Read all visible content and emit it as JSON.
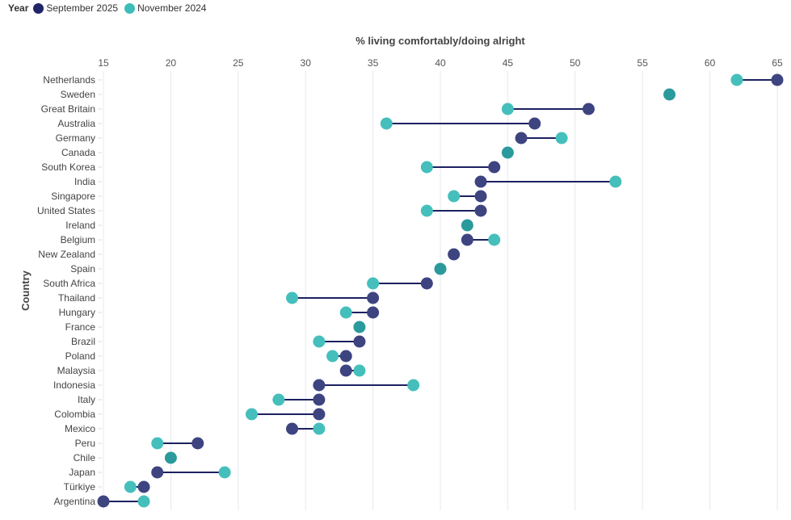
{
  "legend": {
    "title": "Year",
    "items": [
      {
        "label": "September 2025",
        "color": "#232a6b"
      },
      {
        "label": "November 2024",
        "color": "#3cbdb9"
      }
    ]
  },
  "chart_data": {
    "type": "dumbbell",
    "title": "",
    "xlabel": "% living comfortably/doing alright",
    "ylabel": "Country",
    "xlim": [
      15,
      65
    ],
    "xticks": [
      15,
      20,
      25,
      30,
      35,
      40,
      45,
      50,
      55,
      60,
      65
    ],
    "grid": true,
    "legend_position": "top-left",
    "colors": {
      "sep2025": "#3d4480",
      "nov2024": "#45bfbc",
      "overlap": "#2a9a9c",
      "connector": "#1c2160"
    },
    "categories": [
      "Netherlands",
      "Sweden",
      "Great Britain",
      "Australia",
      "Germany",
      "Canada",
      "South Korea",
      "India",
      "Singapore",
      "United States",
      "Ireland",
      "Belgium",
      "New Zealand",
      "Spain",
      "South Africa",
      "Thailand",
      "Hungary",
      "France",
      "Brazil",
      "Poland",
      "Malaysia",
      "Indonesia",
      "Italy",
      "Colombia",
      "Mexico",
      "Peru",
      "Chile",
      "Japan",
      "Türkiye",
      "Argentina"
    ],
    "series": [
      {
        "name": "September 2025",
        "values": [
          65,
          57,
          51,
          47,
          46,
          45,
          44,
          43,
          43,
          43,
          42,
          42,
          41,
          40,
          39,
          35,
          35,
          34,
          34,
          33,
          33,
          31,
          31,
          31,
          29,
          22,
          20,
          19,
          18,
          15
        ]
      },
      {
        "name": "November 2024",
        "values": [
          62,
          57,
          45,
          36,
          49,
          45,
          39,
          53,
          41,
          39,
          42,
          44,
          null,
          40,
          35,
          29,
          33,
          34,
          31,
          32,
          34,
          38,
          28,
          26,
          31,
          19,
          20,
          24,
          17,
          18
        ]
      }
    ]
  }
}
